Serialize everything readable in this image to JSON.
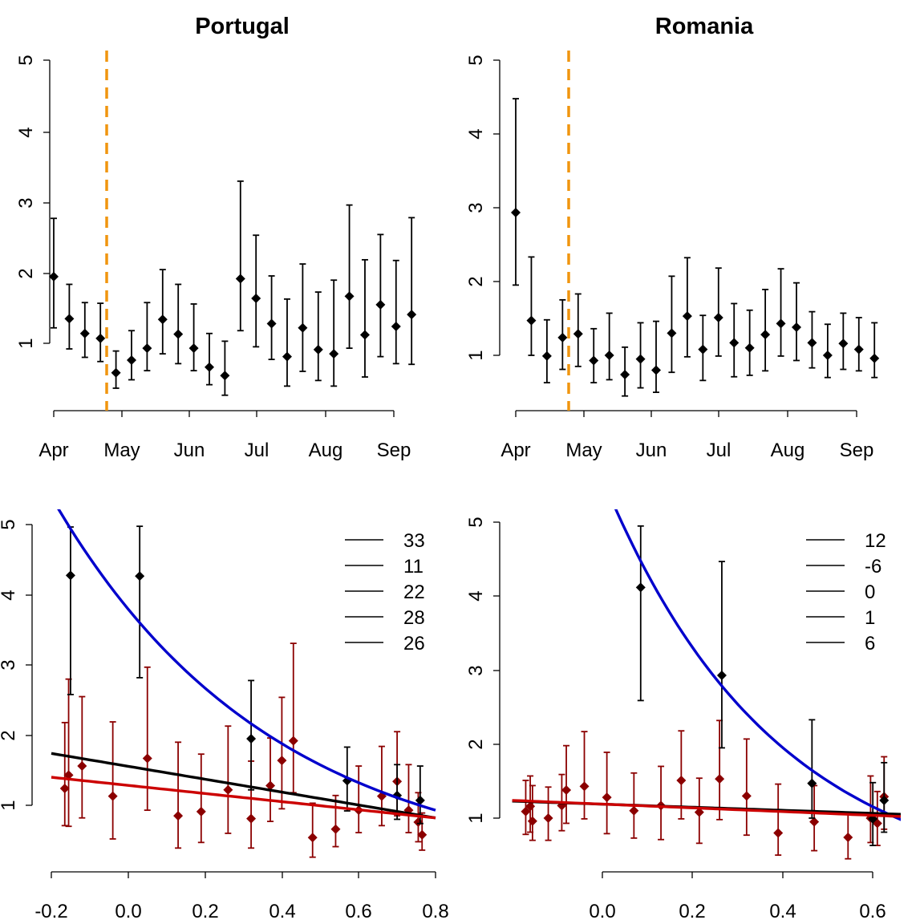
{
  "chart_data": [
    {
      "type": "scatter",
      "panel": "top-left",
      "title": "Portugal",
      "xlabel": "",
      "ylabel": "",
      "x_axis": {
        "kind": "month",
        "ticks": [
          "Apr",
          "May",
          "Jun",
          "Jul",
          "Aug",
          "Sep"
        ]
      },
      "y_axis": {
        "ticks": [
          "1",
          "2",
          "3",
          "4",
          "5"
        ],
        "range": [
          1,
          5
        ]
      },
      "grid": false,
      "reference_line": {
        "style": "dashed",
        "color": "#f0950f",
        "label": ""
      },
      "series": [
        {
          "color": "#000000",
          "points": [
            {
              "x": "2020-04-01",
              "y": 1.95,
              "lo": 1.22,
              "hi": 2.78
            },
            {
              "x": "2020-04-08",
              "y": 1.35,
              "lo": 0.92,
              "hi": 1.84
            },
            {
              "x": "2020-04-15",
              "y": 1.14,
              "lo": 0.8,
              "hi": 1.58
            },
            {
              "x": "2020-04-22",
              "y": 1.07,
              "lo": 0.74,
              "hi": 1.57
            },
            {
              "x": "2020-04-29",
              "y": 0.58,
              "lo": 0.36,
              "hi": 0.89
            },
            {
              "x": "2020-05-06",
              "y": 0.76,
              "lo": 0.48,
              "hi": 1.18
            },
            {
              "x": "2020-05-13",
              "y": 0.93,
              "lo": 0.61,
              "hi": 1.58
            },
            {
              "x": "2020-05-20",
              "y": 1.34,
              "lo": 0.85,
              "hi": 2.05
            },
            {
              "x": "2020-05-27",
              "y": 1.13,
              "lo": 0.71,
              "hi": 1.84
            },
            {
              "x": "2020-06-03",
              "y": 0.93,
              "lo": 0.61,
              "hi": 1.56
            },
            {
              "x": "2020-06-10",
              "y": 0.66,
              "lo": 0.41,
              "hi": 1.14
            },
            {
              "x": "2020-06-17",
              "y": 0.54,
              "lo": 0.26,
              "hi": 1.03
            },
            {
              "x": "2020-06-24",
              "y": 1.92,
              "lo": 1.18,
              "hi": 3.31
            },
            {
              "x": "2020-07-01",
              "y": 1.64,
              "lo": 0.95,
              "hi": 2.54
            },
            {
              "x": "2020-07-08",
              "y": 1.28,
              "lo": 0.77,
              "hi": 1.96
            },
            {
              "x": "2020-07-15",
              "y": 0.81,
              "lo": 0.39,
              "hi": 1.63
            },
            {
              "x": "2020-07-22",
              "y": 1.22,
              "lo": 0.6,
              "hi": 2.13
            },
            {
              "x": "2020-07-29",
              "y": 0.91,
              "lo": 0.47,
              "hi": 1.73
            },
            {
              "x": "2020-08-05",
              "y": 0.85,
              "lo": 0.39,
              "hi": 1.9
            },
            {
              "x": "2020-08-12",
              "y": 1.67,
              "lo": 0.93,
              "hi": 2.97
            },
            {
              "x": "2020-08-19",
              "y": 1.12,
              "lo": 0.52,
              "hi": 2.19
            },
            {
              "x": "2020-08-26",
              "y": 1.55,
              "lo": 0.81,
              "hi": 2.55
            },
            {
              "x": "2020-09-02",
              "y": 1.24,
              "lo": 0.71,
              "hi": 2.18
            },
            {
              "x": "2020-09-09",
              "y": 1.41,
              "lo": 0.7,
              "hi": 2.79
            }
          ]
        }
      ]
    },
    {
      "type": "scatter",
      "panel": "top-right",
      "title": "Romania",
      "xlabel": "",
      "ylabel": "",
      "x_axis": {
        "kind": "month",
        "ticks": [
          "Apr",
          "May",
          "Jun",
          "Jul",
          "Aug",
          "Sep"
        ]
      },
      "y_axis": {
        "ticks": [
          "1",
          "2",
          "3",
          "4",
          "5"
        ],
        "range": [
          1,
          5
        ]
      },
      "grid": false,
      "reference_line": {
        "style": "dashed",
        "color": "#f0950f",
        "label": ""
      },
      "series": [
        {
          "color": "#000000",
          "points": [
            {
              "x": "2020-04-01",
              "y": 2.93,
              "lo": 1.95,
              "hi": 4.47
            },
            {
              "x": "2020-04-08",
              "y": 1.47,
              "lo": 1.0,
              "hi": 2.33
            },
            {
              "x": "2020-04-15",
              "y": 0.99,
              "lo": 0.63,
              "hi": 1.48
            },
            {
              "x": "2020-04-22",
              "y": 1.24,
              "lo": 0.81,
              "hi": 1.75
            },
            {
              "x": "2020-04-29",
              "y": 1.29,
              "lo": 0.85,
              "hi": 1.83
            },
            {
              "x": "2020-05-06",
              "y": 0.93,
              "lo": 0.63,
              "hi": 1.36
            },
            {
              "x": "2020-05-13",
              "y": 1.0,
              "lo": 0.67,
              "hi": 1.57
            },
            {
              "x": "2020-05-20",
              "y": 0.74,
              "lo": 0.45,
              "hi": 1.11
            },
            {
              "x": "2020-05-27",
              "y": 0.95,
              "lo": 0.56,
              "hi": 1.44
            },
            {
              "x": "2020-06-03",
              "y": 0.8,
              "lo": 0.5,
              "hi": 1.46
            },
            {
              "x": "2020-06-10",
              "y": 1.3,
              "lo": 0.77,
              "hi": 2.07
            },
            {
              "x": "2020-06-17",
              "y": 1.53,
              "lo": 0.98,
              "hi": 2.32
            },
            {
              "x": "2020-06-24",
              "y": 1.08,
              "lo": 0.66,
              "hi": 1.54
            },
            {
              "x": "2020-07-01",
              "y": 1.51,
              "lo": 0.99,
              "hi": 2.18
            },
            {
              "x": "2020-07-08",
              "y": 1.17,
              "lo": 0.71,
              "hi": 1.7
            },
            {
              "x": "2020-07-15",
              "y": 1.1,
              "lo": 0.73,
              "hi": 1.61
            },
            {
              "x": "2020-07-22",
              "y": 1.28,
              "lo": 0.79,
              "hi": 1.89
            },
            {
              "x": "2020-07-29",
              "y": 1.43,
              "lo": 0.99,
              "hi": 2.17
            },
            {
              "x": "2020-08-05",
              "y": 1.38,
              "lo": 0.93,
              "hi": 1.98
            },
            {
              "x": "2020-08-12",
              "y": 1.17,
              "lo": 0.83,
              "hi": 1.59
            },
            {
              "x": "2020-08-19",
              "y": 1.0,
              "lo": 0.7,
              "hi": 1.42
            },
            {
              "x": "2020-08-26",
              "y": 1.16,
              "lo": 0.81,
              "hi": 1.57
            },
            {
              "x": "2020-09-02",
              "y": 1.08,
              "lo": 0.79,
              "hi": 1.51
            },
            {
              "x": "2020-09-09",
              "y": 0.96,
              "lo": 0.7,
              "hi": 1.44
            }
          ]
        }
      ]
    },
    {
      "type": "scatter",
      "panel": "bottom-left",
      "title": "",
      "xlabel": "",
      "ylabel": "",
      "x_axis": {
        "range": [
          -0.2,
          0.8
        ],
        "ticks": [
          "-0.2",
          "0.0",
          "0.2",
          "0.4",
          "0.6",
          "0.8"
        ]
      },
      "y_axis": {
        "ticks": [
          "1",
          "2",
          "3",
          "4",
          "5"
        ],
        "range": [
          1,
          5
        ]
      },
      "grid": false,
      "legend": {
        "placement": "top-right",
        "entries": [
          "33",
          "11",
          "22",
          "28",
          "26"
        ]
      },
      "fitted_lines": [
        {
          "color": "#0000cc",
          "model": "exponential",
          "x_start": -0.2,
          "y_start": 5.4,
          "x_end": 0.8,
          "y_end": 0.93
        },
        {
          "color": "#000000",
          "model": "linear",
          "x_start": -0.2,
          "y_start": 1.74,
          "x_end": 0.8,
          "y_end": 0.82
        },
        {
          "color": "#cc0000",
          "model": "linear",
          "x_start": -0.2,
          "y_start": 1.4,
          "x_end": 0.8,
          "y_end": 0.82
        }
      ],
      "series": [
        {
          "color": "#000000",
          "points": [
            {
              "x": -0.15,
              "y": 4.28,
              "lo": 2.58,
              "hi": 4.97
            },
            {
              "x": 0.03,
              "y": 4.27,
              "lo": 2.82,
              "hi": 4.98
            },
            {
              "x": 0.32,
              "y": 1.95,
              "lo": 1.22,
              "hi": 2.78
            },
            {
              "x": 0.57,
              "y": 1.35,
              "lo": 0.92,
              "hi": 1.83
            },
            {
              "x": 0.7,
              "y": 1.14,
              "lo": 0.8,
              "hi": 1.58
            },
            {
              "x": 0.76,
              "y": 1.07,
              "lo": 0.74,
              "hi": 1.56
            }
          ]
        },
        {
          "color": "#8b0000",
          "points": [
            {
              "x": -0.165,
              "y": 1.24,
              "lo": 0.71,
              "hi": 2.18
            },
            {
              "x": -0.155,
              "y": 1.43,
              "lo": 0.7,
              "hi": 2.8
            },
            {
              "x": -0.12,
              "y": 1.56,
              "lo": 0.82,
              "hi": 2.55
            },
            {
              "x": -0.04,
              "y": 1.13,
              "lo": 0.52,
              "hi": 2.19
            },
            {
              "x": 0.05,
              "y": 1.67,
              "lo": 0.93,
              "hi": 2.97
            },
            {
              "x": 0.13,
              "y": 0.85,
              "lo": 0.39,
              "hi": 1.9
            },
            {
              "x": 0.19,
              "y": 0.91,
              "lo": 0.47,
              "hi": 1.73
            },
            {
              "x": 0.26,
              "y": 1.22,
              "lo": 0.6,
              "hi": 2.13
            },
            {
              "x": 0.32,
              "y": 0.81,
              "lo": 0.39,
              "hi": 1.63
            },
            {
              "x": 0.37,
              "y": 1.28,
              "lo": 0.77,
              "hi": 1.96
            },
            {
              "x": 0.4,
              "y": 1.64,
              "lo": 0.95,
              "hi": 2.54
            },
            {
              "x": 0.43,
              "y": 1.92,
              "lo": 1.18,
              "hi": 3.31
            },
            {
              "x": 0.48,
              "y": 0.54,
              "lo": 0.26,
              "hi": 1.03
            },
            {
              "x": 0.54,
              "y": 0.66,
              "lo": 0.41,
              "hi": 1.14
            },
            {
              "x": 0.6,
              "y": 0.93,
              "lo": 0.61,
              "hi": 1.56
            },
            {
              "x": 0.66,
              "y": 1.13,
              "lo": 0.71,
              "hi": 1.84
            },
            {
              "x": 0.7,
              "y": 1.34,
              "lo": 0.85,
              "hi": 2.05
            },
            {
              "x": 0.73,
              "y": 0.93,
              "lo": 0.61,
              "hi": 1.58
            },
            {
              "x": 0.755,
              "y": 0.76,
              "lo": 0.48,
              "hi": 1.18
            },
            {
              "x": 0.765,
              "y": 0.58,
              "lo": 0.36,
              "hi": 0.89
            }
          ]
        }
      ]
    },
    {
      "type": "scatter",
      "panel": "bottom-right",
      "title": "",
      "xlabel": "",
      "ylabel": "",
      "x_axis": {
        "range": [
          -0.2,
          0.65
        ],
        "ticks": [
          "0.0",
          "0.2",
          "0.4",
          "0.6"
        ]
      },
      "y_axis": {
        "ticks": [
          "1",
          "2",
          "3",
          "4",
          "5"
        ],
        "range": [
          1,
          5
        ]
      },
      "grid": false,
      "legend": {
        "placement": "top-right",
        "entries": [
          "12",
          "-6",
          "0",
          "1",
          "6"
        ]
      },
      "fitted_lines": [
        {
          "color": "#0000cc",
          "model": "exponential",
          "x_start": 0.0,
          "y_start": 5.6,
          "x_end": 0.67,
          "y_end": 0.96
        },
        {
          "color": "#000000",
          "model": "linear",
          "x_start": -0.2,
          "y_start": 1.23,
          "x_end": 0.67,
          "y_end": 1.05
        },
        {
          "color": "#cc0000",
          "model": "linear",
          "x_start": -0.2,
          "y_start": 1.24,
          "x_end": 0.67,
          "y_end": 1.02
        }
      ],
      "series": [
        {
          "color": "#000000",
          "points": [
            {
              "x": 0.085,
              "y": 4.12,
              "lo": 2.59,
              "hi": 4.95
            },
            {
              "x": 0.265,
              "y": 2.93,
              "lo": 1.95,
              "hi": 4.47
            },
            {
              "x": 0.465,
              "y": 1.47,
              "lo": 1.0,
              "hi": 2.33
            },
            {
              "x": 0.6,
              "y": 0.99,
              "lo": 0.63,
              "hi": 1.48
            },
            {
              "x": 0.625,
              "y": 1.24,
              "lo": 0.81,
              "hi": 1.75
            }
          ]
        },
        {
          "color": "#8b0000",
          "points": [
            {
              "x": -0.17,
              "y": 1.09,
              "lo": 0.78,
              "hi": 1.51
            },
            {
              "x": -0.16,
              "y": 1.16,
              "lo": 0.81,
              "hi": 1.57
            },
            {
              "x": -0.155,
              "y": 0.96,
              "lo": 0.7,
              "hi": 1.44
            },
            {
              "x": -0.12,
              "y": 1.0,
              "lo": 0.7,
              "hi": 1.42
            },
            {
              "x": -0.09,
              "y": 1.17,
              "lo": 0.83,
              "hi": 1.59
            },
            {
              "x": -0.08,
              "y": 1.38,
              "lo": 0.93,
              "hi": 1.98
            },
            {
              "x": -0.04,
              "y": 1.43,
              "lo": 0.99,
              "hi": 2.17
            },
            {
              "x": 0.01,
              "y": 1.28,
              "lo": 0.79,
              "hi": 1.89
            },
            {
              "x": 0.07,
              "y": 1.1,
              "lo": 0.73,
              "hi": 1.61
            },
            {
              "x": 0.13,
              "y": 1.17,
              "lo": 0.71,
              "hi": 1.7
            },
            {
              "x": 0.175,
              "y": 1.51,
              "lo": 0.99,
              "hi": 2.18
            },
            {
              "x": 0.215,
              "y": 1.08,
              "lo": 0.66,
              "hi": 1.54
            },
            {
              "x": 0.26,
              "y": 1.53,
              "lo": 0.98,
              "hi": 2.32
            },
            {
              "x": 0.32,
              "y": 1.3,
              "lo": 0.77,
              "hi": 2.07
            },
            {
              "x": 0.39,
              "y": 0.8,
              "lo": 0.5,
              "hi": 1.46
            },
            {
              "x": 0.47,
              "y": 0.95,
              "lo": 0.56,
              "hi": 1.44
            },
            {
              "x": 0.545,
              "y": 0.74,
              "lo": 0.45,
              "hi": 1.05
            },
            {
              "x": 0.595,
              "y": 1.0,
              "lo": 0.67,
              "hi": 1.57
            },
            {
              "x": 0.61,
              "y": 0.93,
              "lo": 0.63,
              "hi": 1.36
            },
            {
              "x": 0.625,
              "y": 1.29,
              "lo": 0.85,
              "hi": 1.83
            }
          ]
        }
      ]
    }
  ]
}
